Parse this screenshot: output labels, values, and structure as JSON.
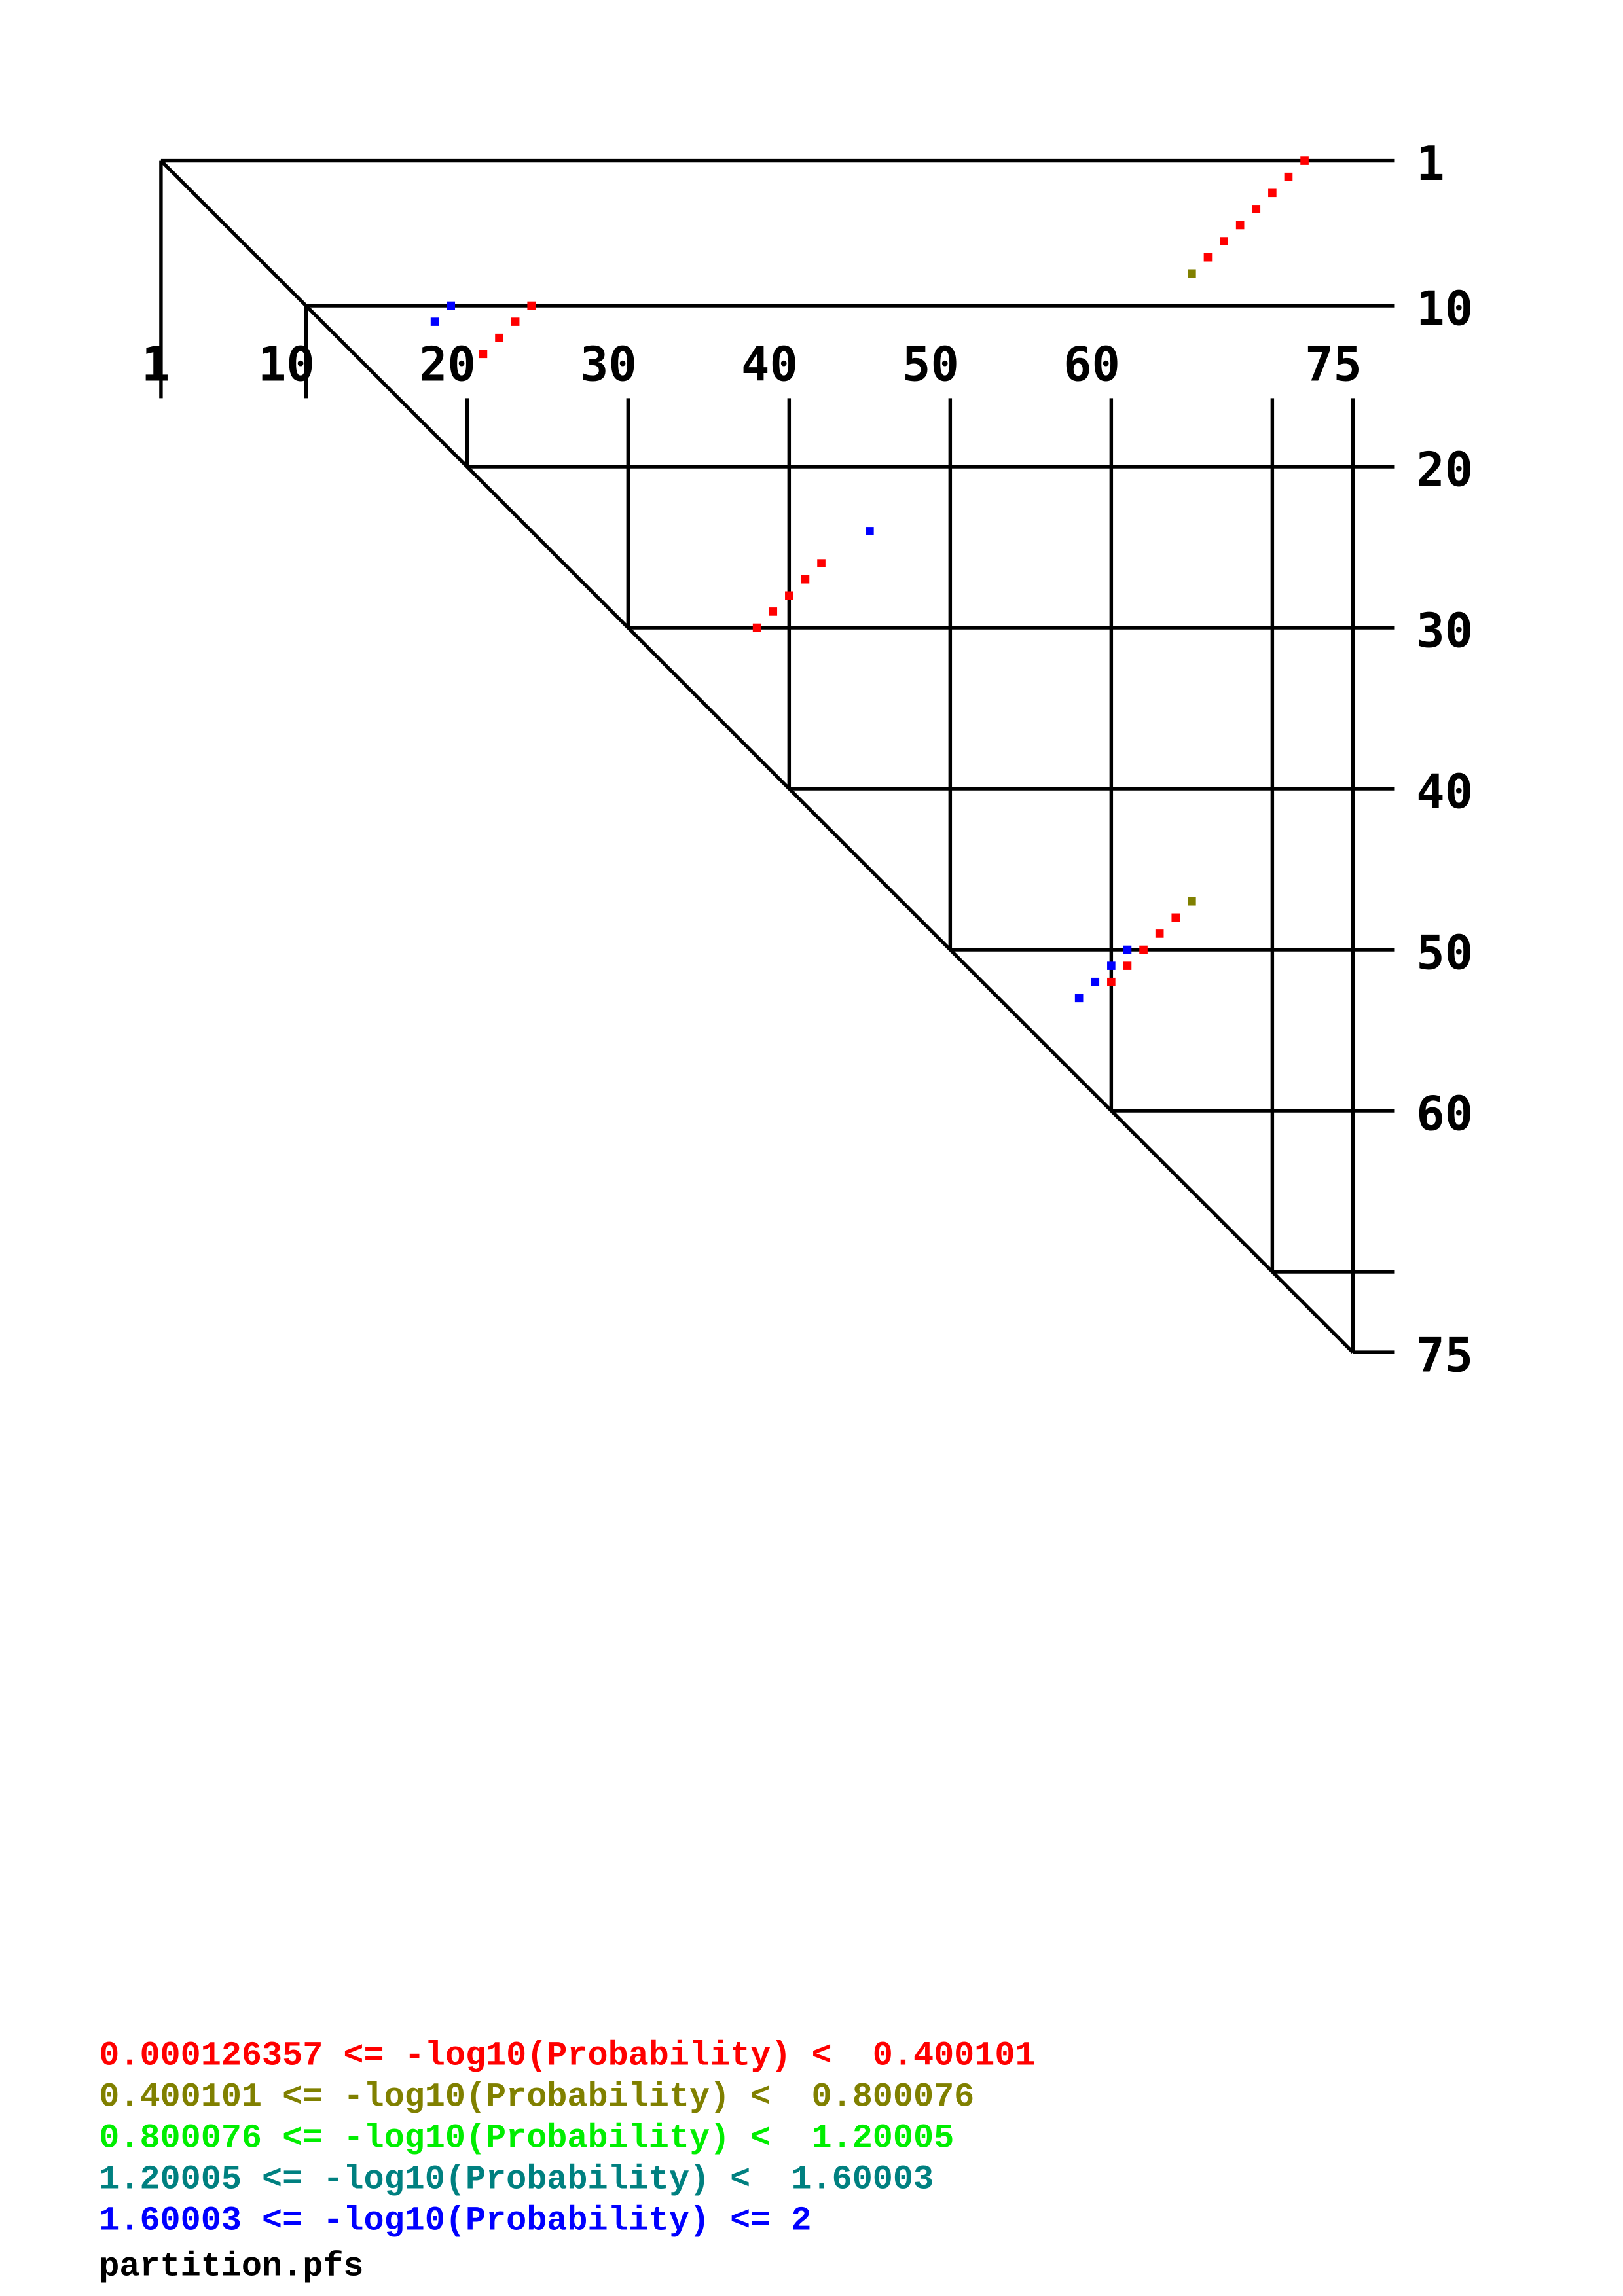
{
  "chart_data": {
    "type": "scatter",
    "subtype": "base-pair probability dot plot (upper triangle)",
    "sequence_length": 75,
    "x_ticks": [
      "1",
      "10",
      "20",
      "30",
      "40",
      "50",
      "60",
      "75"
    ],
    "y_ticks": [
      "1",
      "10",
      "20",
      "30",
      "40",
      "50",
      "60",
      "75"
    ],
    "grid_positions": [
      1,
      10,
      20,
      30,
      40,
      50,
      60,
      70,
      75
    ],
    "axis_range": [
      1,
      75
    ],
    "grid": true,
    "legend_placement": "bottom-left",
    "legend": [
      {
        "text": "0.000126357 <= -log10(Probability) <  0.400101",
        "color": "#ff0000"
      },
      {
        "text": "0.400101 <= -log10(Probability) <  0.800076",
        "color": "#808000"
      },
      {
        "text": "0.800076 <= -log10(Probability) <  1.20005",
        "color": "#00ee00"
      },
      {
        "text": "1.20005 <= -log10(Probability) <  1.60003",
        "color": "#008080"
      },
      {
        "text": "1.60003 <= -log10(Probability) <= 2",
        "color": "#0000ff"
      }
    ],
    "filename": "partition.pfs",
    "points": [
      {
        "i": 1,
        "j": 72,
        "bin": 0
      },
      {
        "i": 2,
        "j": 71,
        "bin": 0
      },
      {
        "i": 3,
        "j": 70,
        "bin": 0
      },
      {
        "i": 4,
        "j": 69,
        "bin": 0
      },
      {
        "i": 5,
        "j": 68,
        "bin": 0
      },
      {
        "i": 6,
        "j": 67,
        "bin": 0
      },
      {
        "i": 7,
        "j": 66,
        "bin": 0
      },
      {
        "i": 8,
        "j": 65,
        "bin": 1
      },
      {
        "i": 10,
        "j": 19,
        "bin": 4
      },
      {
        "i": 11,
        "j": 18,
        "bin": 4
      },
      {
        "i": 10,
        "j": 24,
        "bin": 0
      },
      {
        "i": 11,
        "j": 23,
        "bin": 0
      },
      {
        "i": 12,
        "j": 22,
        "bin": 0
      },
      {
        "i": 13,
        "j": 21,
        "bin": 0
      },
      {
        "i": 24,
        "j": 45,
        "bin": 4
      },
      {
        "i": 26,
        "j": 42,
        "bin": 0
      },
      {
        "i": 27,
        "j": 41,
        "bin": 0
      },
      {
        "i": 28,
        "j": 40,
        "bin": 0
      },
      {
        "i": 29,
        "j": 39,
        "bin": 0
      },
      {
        "i": 30,
        "j": 38,
        "bin": 0
      },
      {
        "i": 47,
        "j": 65,
        "bin": 1
      },
      {
        "i": 48,
        "j": 64,
        "bin": 0
      },
      {
        "i": 49,
        "j": 63,
        "bin": 0
      },
      {
        "i": 50,
        "j": 62,
        "bin": 0
      },
      {
        "i": 51,
        "j": 61,
        "bin": 0
      },
      {
        "i": 52,
        "j": 60,
        "bin": 0
      },
      {
        "i": 50,
        "j": 61,
        "bin": 4
      },
      {
        "i": 51,
        "j": 60,
        "bin": 4
      },
      {
        "i": 52,
        "j": 59,
        "bin": 4
      },
      {
        "i": 53,
        "j": 58,
        "bin": 4
      }
    ]
  }
}
